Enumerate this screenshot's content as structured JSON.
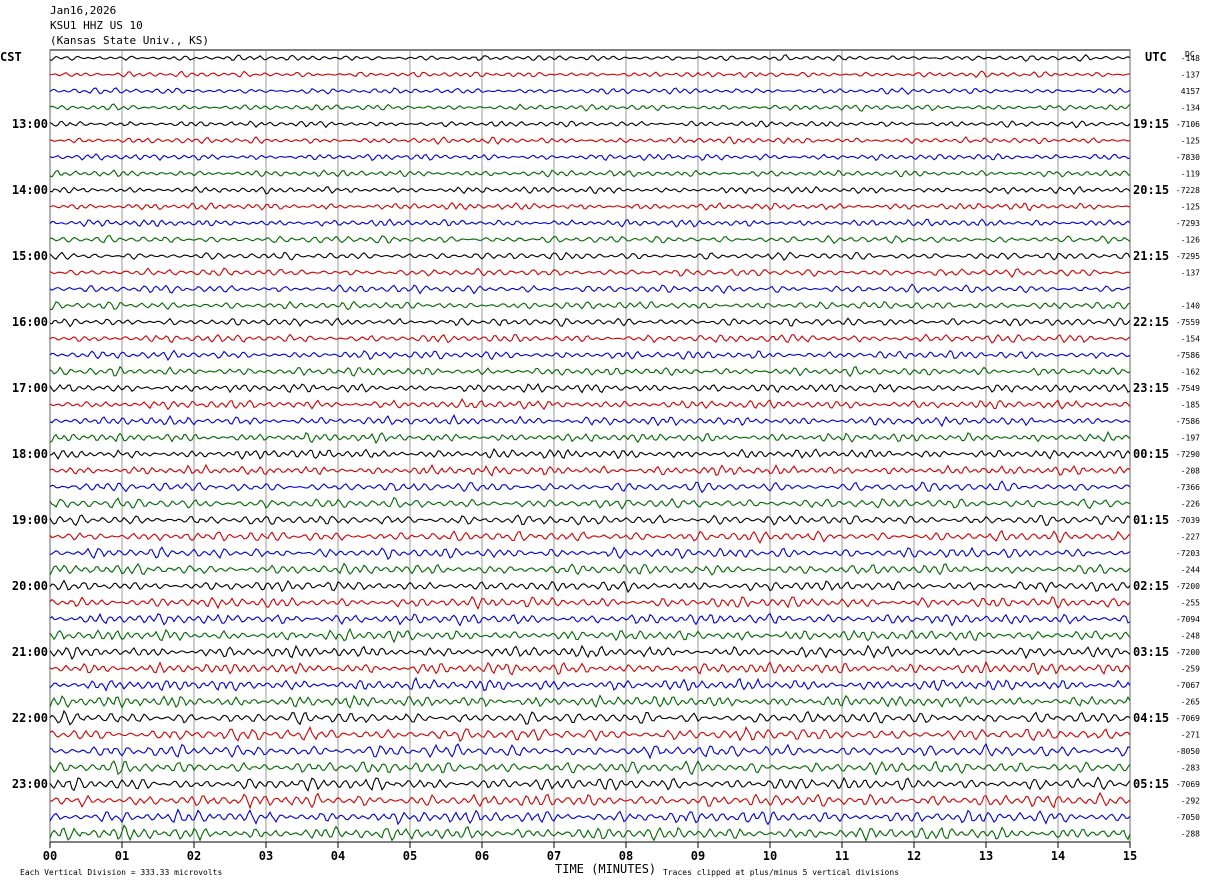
{
  "header": {
    "date": "Jan16,2026",
    "station": "KSU1 HHZ US 10",
    "location": "(Kansas State Univ., KS)"
  },
  "left_tz": "CST",
  "right_tz": "UTC",
  "dc_label": "DC",
  "footer": {
    "scale_note": "Each Vertical Division =  333.33 microvolts",
    "clip_note": "Traces clipped at plus/minus 5 vertical divisions",
    "xlabel": "TIME (MINUTES)"
  },
  "chart_data": {
    "type": "line",
    "title": "KSU1 HHZ US 10",
    "xlabel": "TIME (MINUTES)",
    "xlim": [
      0,
      15
    ],
    "x_ticks": [
      "00",
      "01",
      "02",
      "03",
      "04",
      "05",
      "06",
      "07",
      "08",
      "09",
      "10",
      "11",
      "12",
      "13",
      "14",
      "15"
    ],
    "traces_per_hour": 4,
    "trace_colors": [
      "#000000",
      "#cc0000",
      "#0000cc",
      "#006600"
    ],
    "left_hour_labels": [
      "13:00",
      "14:00",
      "15:00",
      "16:00",
      "17:00",
      "18:00",
      "19:00",
      "20:00",
      "21:00",
      "22:00",
      "23:00"
    ],
    "right_hour_labels": [
      "19:15",
      "20:15",
      "21:15",
      "22:15",
      "23:15",
      "00:15",
      "01:15",
      "02:15",
      "03:15",
      "04:15",
      "05:15"
    ],
    "dc_offsets": [
      "-148",
      "-137",
      "4157",
      "-134",
      "-7106",
      "-125",
      "-7830",
      "-119",
      "-7228",
      "-125",
      "-7293",
      "-126",
      "-7295",
      "-137",
      "",
      "-140",
      "-7559",
      "-154",
      "-7586",
      "-162",
      "-7549",
      "-185",
      "-7586",
      "-197",
      "-7290",
      "-208",
      "-7366",
      "-226",
      "-7039",
      "-227",
      "-7203",
      "-244",
      "-7200",
      "-255",
      "-7094",
      "-248",
      "-7200",
      "-259",
      "-7067",
      "-265",
      "-7069",
      "-271",
      "-8050",
      "-283",
      "-7069",
      "-292",
      "-7050",
      "-288"
    ]
  }
}
